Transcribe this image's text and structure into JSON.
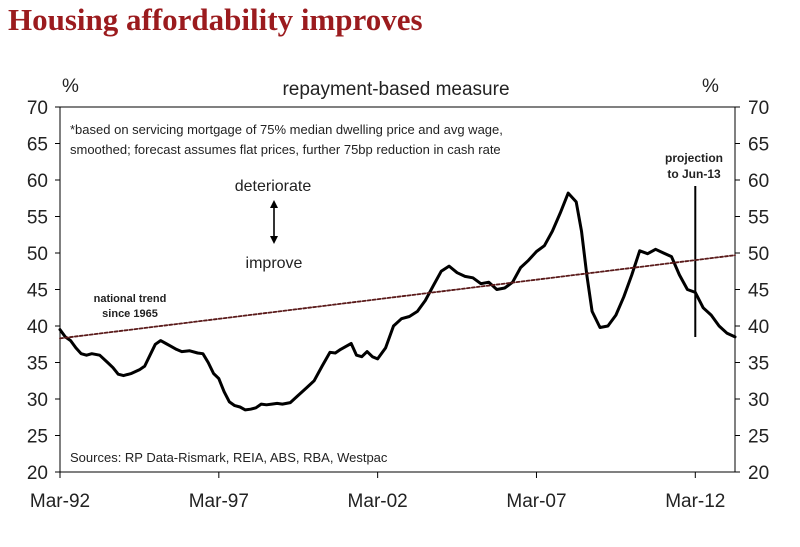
{
  "title": "Housing affordability improves",
  "chart_data": {
    "type": "line",
    "subtitle": "repayment-based measure",
    "y_unit_left": "%",
    "y_unit_right": "%",
    "ylim": [
      20,
      70
    ],
    "yticks": [
      20,
      25,
      30,
      35,
      40,
      45,
      50,
      55,
      60,
      65,
      70
    ],
    "xlim": [
      "1992-03",
      "2013-06"
    ],
    "xticks": [
      {
        "label": "Mar-92",
        "x": "1992-03"
      },
      {
        "label": "Mar-97",
        "x": "1997-03"
      },
      {
        "label": "Mar-02",
        "x": "2002-03"
      },
      {
        "label": "Mar-07",
        "x": "2007-03"
      },
      {
        "label": "Mar-12",
        "x": "2012-03"
      }
    ],
    "note_line1": "*based on servicing mortgage of 75% median dwelling price and avg wage,",
    "note_line2": "smoothed; forecast assumes flat prices, further 75bp reduction in cash rate",
    "arrow_top_label": "deteriorate",
    "arrow_bottom_label": "improve",
    "trend_label_line1": "national trend",
    "trend_label_line2": "since 1965",
    "projection_label_line1": "projection",
    "projection_label_line2": "to Jun-13",
    "projection_marker_x": "2012-03",
    "source": "Sources: RP Data-Rismark, REIA, ABS, RBA, Westpac",
    "grid": false,
    "series": [
      {
        "color": "#000000",
        "points": [
          [
            "1992-03",
            39.5
          ],
          [
            "1992-05",
            38.5
          ],
          [
            "1992-07",
            38.0
          ],
          [
            "1992-09",
            37.0
          ],
          [
            "1992-11",
            36.2
          ],
          [
            "1993-01",
            36.0
          ],
          [
            "1993-03",
            36.2
          ],
          [
            "1993-06",
            36.0
          ],
          [
            "1993-09",
            35.0
          ],
          [
            "1993-11",
            34.3
          ],
          [
            "1994-01",
            33.4
          ],
          [
            "1994-03",
            33.2
          ],
          [
            "1994-06",
            33.5
          ],
          [
            "1994-09",
            34.0
          ],
          [
            "1994-11",
            34.5
          ],
          [
            "1995-01",
            36.0
          ],
          [
            "1995-03",
            37.5
          ],
          [
            "1995-05",
            38.0
          ],
          [
            "1995-07",
            37.6
          ],
          [
            "1995-09",
            37.2
          ],
          [
            "1995-11",
            36.8
          ],
          [
            "1996-01",
            36.5
          ],
          [
            "1996-04",
            36.6
          ],
          [
            "1996-07",
            36.3
          ],
          [
            "1996-09",
            36.2
          ],
          [
            "1996-11",
            35.0
          ],
          [
            "1997-01",
            33.5
          ],
          [
            "1997-03",
            32.8
          ],
          [
            "1997-05",
            31.0
          ],
          [
            "1997-07",
            29.6
          ],
          [
            "1997-09",
            29.1
          ],
          [
            "1997-11",
            28.9
          ],
          [
            "1998-01",
            28.5
          ],
          [
            "1998-03",
            28.6
          ],
          [
            "1998-05",
            28.8
          ],
          [
            "1998-07",
            29.3
          ],
          [
            "1998-09",
            29.2
          ],
          [
            "1998-11",
            29.3
          ],
          [
            "1999-01",
            29.4
          ],
          [
            "1999-03",
            29.3
          ],
          [
            "1999-06",
            29.5
          ],
          [
            "1999-09",
            30.5
          ],
          [
            "1999-12",
            31.5
          ],
          [
            "2000-03",
            32.5
          ],
          [
            "2000-06",
            34.5
          ],
          [
            "2000-09",
            36.4
          ],
          [
            "2000-11",
            36.3
          ],
          [
            "2001-01",
            36.8
          ],
          [
            "2001-03",
            37.2
          ],
          [
            "2001-05",
            37.6
          ],
          [
            "2001-07",
            36.0
          ],
          [
            "2001-09",
            35.8
          ],
          [
            "2001-11",
            36.5
          ],
          [
            "2002-01",
            35.8
          ],
          [
            "2002-03",
            35.5
          ],
          [
            "2002-06",
            37.0
          ],
          [
            "2002-09",
            40.0
          ],
          [
            "2002-12",
            41.0
          ],
          [
            "2003-03",
            41.3
          ],
          [
            "2003-06",
            42.0
          ],
          [
            "2003-09",
            43.5
          ],
          [
            "2003-12",
            45.5
          ],
          [
            "2004-03",
            47.5
          ],
          [
            "2004-06",
            48.2
          ],
          [
            "2004-09",
            47.3
          ],
          [
            "2004-12",
            46.8
          ],
          [
            "2005-03",
            46.6
          ],
          [
            "2005-06",
            45.8
          ],
          [
            "2005-09",
            46.0
          ],
          [
            "2005-12",
            45.0
          ],
          [
            "2006-03",
            45.2
          ],
          [
            "2006-06",
            46.0
          ],
          [
            "2006-09",
            48.0
          ],
          [
            "2006-12",
            49.0
          ],
          [
            "2007-03",
            50.2
          ],
          [
            "2007-06",
            51.0
          ],
          [
            "2007-09",
            53.0
          ],
          [
            "2007-12",
            55.5
          ],
          [
            "2008-03",
            58.2
          ],
          [
            "2008-06",
            57.0
          ],
          [
            "2008-08",
            53.0
          ],
          [
            "2008-10",
            47.0
          ],
          [
            "2008-12",
            42.0
          ],
          [
            "2009-03",
            39.8
          ],
          [
            "2009-06",
            40.0
          ],
          [
            "2009-09",
            41.5
          ],
          [
            "2009-12",
            44.0
          ],
          [
            "2010-03",
            47.0
          ],
          [
            "2010-06",
            50.3
          ],
          [
            "2010-09",
            49.9
          ],
          [
            "2010-12",
            50.5
          ],
          [
            "2011-03",
            50.0
          ],
          [
            "2011-06",
            49.5
          ],
          [
            "2011-09",
            47.0
          ],
          [
            "2011-12",
            45.0
          ],
          [
            "2012-03",
            44.6
          ],
          [
            "2012-06",
            42.5
          ],
          [
            "2012-09",
            41.5
          ],
          [
            "2012-12",
            40.0
          ],
          [
            "2013-03",
            39.0
          ],
          [
            "2013-06",
            38.5
          ]
        ]
      },
      {
        "color": "#5a1a1a",
        "style": "dashed",
        "points": [
          [
            "1992-03",
            38.3
          ],
          [
            "2013-06",
            49.7
          ]
        ]
      }
    ]
  }
}
